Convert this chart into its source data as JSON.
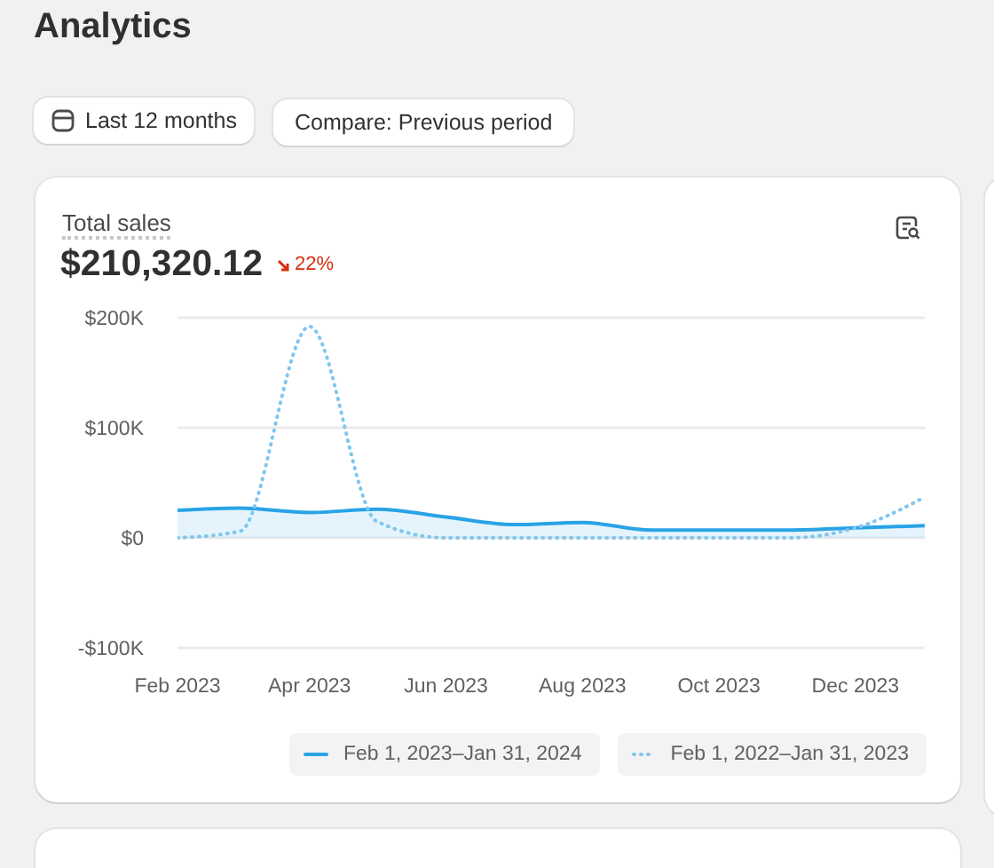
{
  "chart_data": {
    "type": "line",
    "title": "Total sales",
    "subtitle": "$210,320.12",
    "annotations": [
      "Analytics",
      "Last 12 months",
      "Compare: Previous period",
      "22%"
    ],
    "x": [
      "2023-02",
      "2023-03",
      "2023-04",
      "2023-05",
      "2023-06",
      "2023-07",
      "2023-08",
      "2023-09",
      "2023-10",
      "2023-11",
      "2023-12",
      "2024-01"
    ],
    "series": [
      {
        "name": "Feb 1, 2023–Jan 31, 2024",
        "type": "area",
        "color": "#29a3e6",
        "values": [
          25000,
          27000,
          23000,
          26000,
          19000,
          12000,
          14000,
          7000,
          7000,
          7000,
          9000,
          11000
        ]
      },
      {
        "name": "Feb 1, 2022–Jan 31, 2023",
        "line_style": "dotted",
        "color": "#7fc6ee",
        "values": [
          0,
          6000,
          192000,
          15000,
          0,
          0,
          0,
          0,
          0,
          0,
          9000,
          37000
        ]
      }
    ],
    "xlim": [
      "2023-02",
      "2024-01"
    ],
    "xticks": [
      {
        "value": "2023-02",
        "label": "Feb 2023"
      },
      {
        "value": "2023-04",
        "label": "Apr 2023"
      },
      {
        "value": "2023-06",
        "label": "Jun 2023"
      },
      {
        "value": "2023-08",
        "label": "Aug 2023"
      },
      {
        "value": "2023-10",
        "label": "Oct 2023"
      },
      {
        "value": "2023-12",
        "label": "Dec 2023"
      }
    ],
    "ylim": [
      -100000,
      200000
    ],
    "yticks": [
      {
        "value": 200000,
        "label": "$200K"
      },
      {
        "value": 100000,
        "label": "$100K"
      },
      {
        "value": 0,
        "label": "$0"
      },
      {
        "value": -100000,
        "label": "-$100K"
      }
    ],
    "grid": "y",
    "legend": "bottom",
    "marker": "none"
  }
}
